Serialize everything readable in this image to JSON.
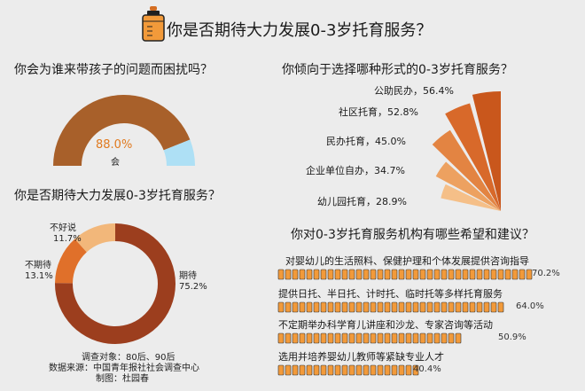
{
  "title": "你是否期待大力发展0-3岁托育服务？",
  "colors": {
    "brown": "#a8602a",
    "light_blue": "#aee0f5",
    "dark_red": "#9c3e1e",
    "orange": "#e0702a",
    "peach": "#f2b77a",
    "accent_orange": "#f29a3a"
  },
  "chart_data": [
    {
      "type": "pie",
      "title": "你会为谁来带孩子的问题而困扰吗？",
      "categories": [
        "会",
        ""
      ],
      "values": [
        88.0,
        12.0
      ],
      "center_value": "88.0%",
      "center_label": "会"
    },
    {
      "type": "pie",
      "title": "你是否期待大力发展0-3岁托育服务？",
      "categories": [
        "期待",
        "不期待",
        "不好说"
      ],
      "values": [
        75.2,
        13.1,
        11.7
      ],
      "labels": [
        "75.2%",
        "13.1%",
        "11.7%"
      ]
    },
    {
      "type": "bar",
      "title": "你倾向于选择哪种形式的0-3岁托育服务？",
      "categories": [
        "公助民办",
        "社区托育",
        "民办托育",
        "企业单位自办",
        "幼儿园托育"
      ],
      "values": [
        56.4,
        52.8,
        45.0,
        34.7,
        28.9
      ],
      "labels": [
        "56.4%",
        "52.8%",
        "45.0%",
        "34.7%",
        "28.9%"
      ]
    },
    {
      "type": "bar",
      "title": "你对0-3岁托育服务机构有哪些希望和建议？",
      "categories": [
        "对婴幼儿的生活照料、保健护理和个体发展提供咨询指导",
        "提供日托、半日托、计时托、临时托等多样托育服务",
        "不定期举办科学育儿讲座和沙龙、专家咨询等活动",
        "选用并培养婴幼儿教师等紧缺专业人才"
      ],
      "values": [
        70.2,
        64.0,
        50.9,
        40.4
      ],
      "labels": [
        "70.2%",
        "64.0%",
        "50.9%",
        "40.4%"
      ]
    }
  ],
  "footer": {
    "line1": "调查对象：80后、90后",
    "line2": "数据来源：中国青年报社社会调查中心",
    "line3": "制图：杜园春"
  }
}
